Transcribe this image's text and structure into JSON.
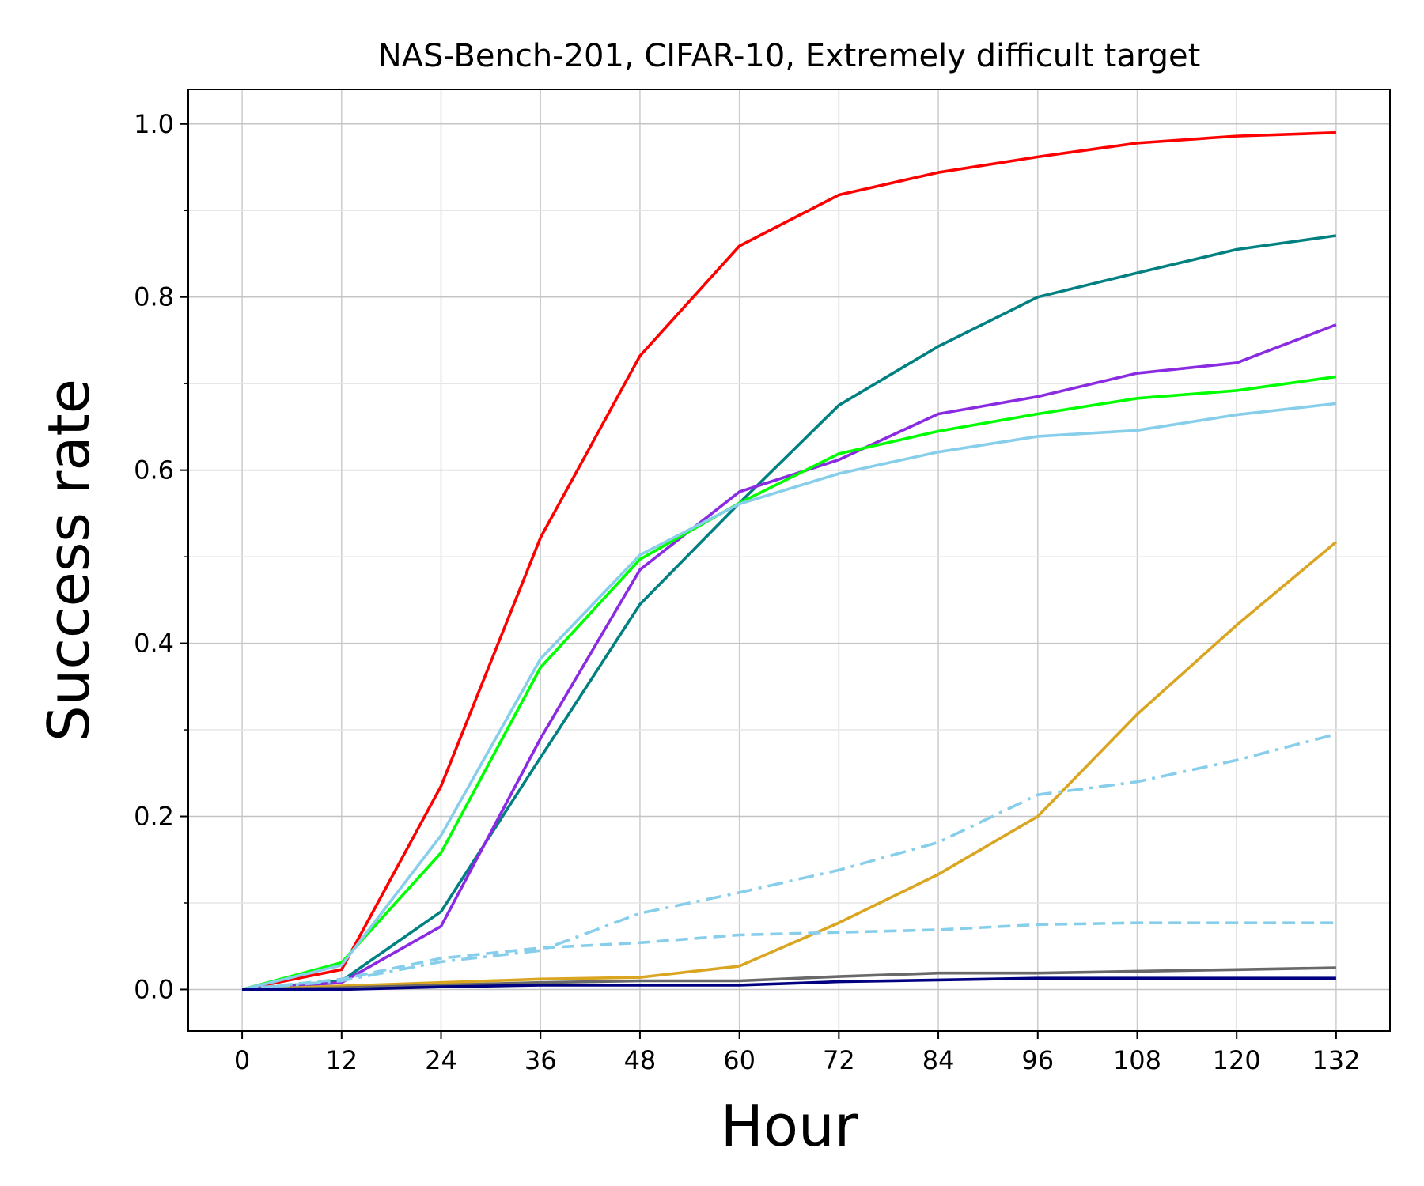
{
  "chart_data": {
    "type": "line",
    "title": "NAS-Bench-201, CIFAR-10, Extremely difficult target",
    "xlabel": "Hour",
    "ylabel": "Success rate",
    "xlim": [
      -6.5,
      138.5
    ],
    "ylim": [
      -0.048,
      1.04
    ],
    "grid": true,
    "x": [
      0,
      12,
      24,
      36,
      48,
      60,
      72,
      84,
      96,
      108,
      120,
      132
    ],
    "x_ticks": [
      "0",
      "12",
      "24",
      "36",
      "48",
      "60",
      "72",
      "84",
      "96",
      "108",
      "120",
      "132"
    ],
    "y_ticks": [
      "0.0",
      "0.2",
      "0.4",
      "0.6",
      "0.8",
      "1.0"
    ],
    "y_ticks_values": [
      0.0,
      0.2,
      0.4,
      0.6,
      0.8,
      1.0
    ],
    "y_minor_ticks": [
      0.1,
      0.3,
      0.5,
      0.7,
      0.9
    ],
    "series": [
      {
        "name": "series-red",
        "color": "#ff0000",
        "style": "solid",
        "values": [
          0.0,
          0.023,
          0.235,
          0.522,
          0.732,
          0.859,
          0.918,
          0.944,
          0.962,
          0.978,
          0.986,
          0.99
        ]
      },
      {
        "name": "series-teal",
        "color": "#008080",
        "style": "solid",
        "values": [
          0.0,
          0.01,
          0.09,
          0.268,
          0.445,
          0.562,
          0.675,
          0.743,
          0.8,
          0.828,
          0.855,
          0.871
        ]
      },
      {
        "name": "series-purple",
        "color": "#8a2be2",
        "style": "solid",
        "values": [
          0.0,
          0.008,
          0.073,
          0.29,
          0.485,
          0.575,
          0.612,
          0.665,
          0.685,
          0.712,
          0.724,
          0.768
        ]
      },
      {
        "name": "series-green",
        "color": "#00ff00",
        "style": "solid",
        "values": [
          0.0,
          0.031,
          0.158,
          0.372,
          0.497,
          0.562,
          0.619,
          0.645,
          0.665,
          0.683,
          0.692,
          0.708
        ]
      },
      {
        "name": "series-skyblue",
        "color": "#87ceeb",
        "style": "solid",
        "values": [
          0.0,
          0.028,
          0.178,
          0.382,
          0.502,
          0.561,
          0.596,
          0.621,
          0.639,
          0.646,
          0.664,
          0.677
        ]
      },
      {
        "name": "series-goldenrod",
        "color": "#daa520",
        "style": "solid",
        "values": [
          0.0,
          0.004,
          0.008,
          0.012,
          0.014,
          0.027,
          0.077,
          0.133,
          0.2,
          0.318,
          0.421,
          0.517
        ]
      },
      {
        "name": "series-skyblue-dashdot",
        "color": "#87ceeb",
        "style": "dashdot",
        "values": [
          0.0,
          0.01,
          0.032,
          0.045,
          0.088,
          0.112,
          0.138,
          0.17,
          0.225,
          0.24,
          0.265,
          0.295
        ]
      },
      {
        "name": "series-skyblue-dashed",
        "color": "#87ceeb",
        "style": "dashed",
        "values": [
          0.0,
          0.012,
          0.036,
          0.048,
          0.054,
          0.063,
          0.066,
          0.069,
          0.075,
          0.077,
          0.077,
          0.077
        ]
      },
      {
        "name": "series-gray",
        "color": "#696969",
        "style": "solid",
        "values": [
          0.0,
          0.002,
          0.005,
          0.008,
          0.01,
          0.01,
          0.015,
          0.019,
          0.019,
          0.021,
          0.023,
          0.025
        ]
      },
      {
        "name": "series-navy",
        "color": "#000080",
        "style": "solid",
        "values": [
          0.0,
          0.0,
          0.003,
          0.005,
          0.005,
          0.005,
          0.009,
          0.011,
          0.013,
          0.013,
          0.013,
          0.013
        ]
      }
    ]
  }
}
